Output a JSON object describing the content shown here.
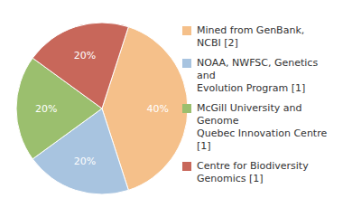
{
  "chart_data": {
    "type": "pie",
    "categories": [
      "Mined from GenBank, NCBI [2]",
      "NOAA, NWFSC, Genetics and\nEvolution Program [1]",
      "McGill University and Genome\nQuebec Innovation Centre [1]",
      "Centre for Biodiversity\nGenomics [1]"
    ],
    "values": [
      40,
      20,
      20,
      20
    ],
    "value_labels": [
      "40%",
      "20%",
      "20%",
      "20%"
    ],
    "colors": [
      "#F5C08A",
      "#A8C4E0",
      "#9BBF6E",
      "#C8675A"
    ],
    "data_labels": true,
    "legend": "right"
  }
}
